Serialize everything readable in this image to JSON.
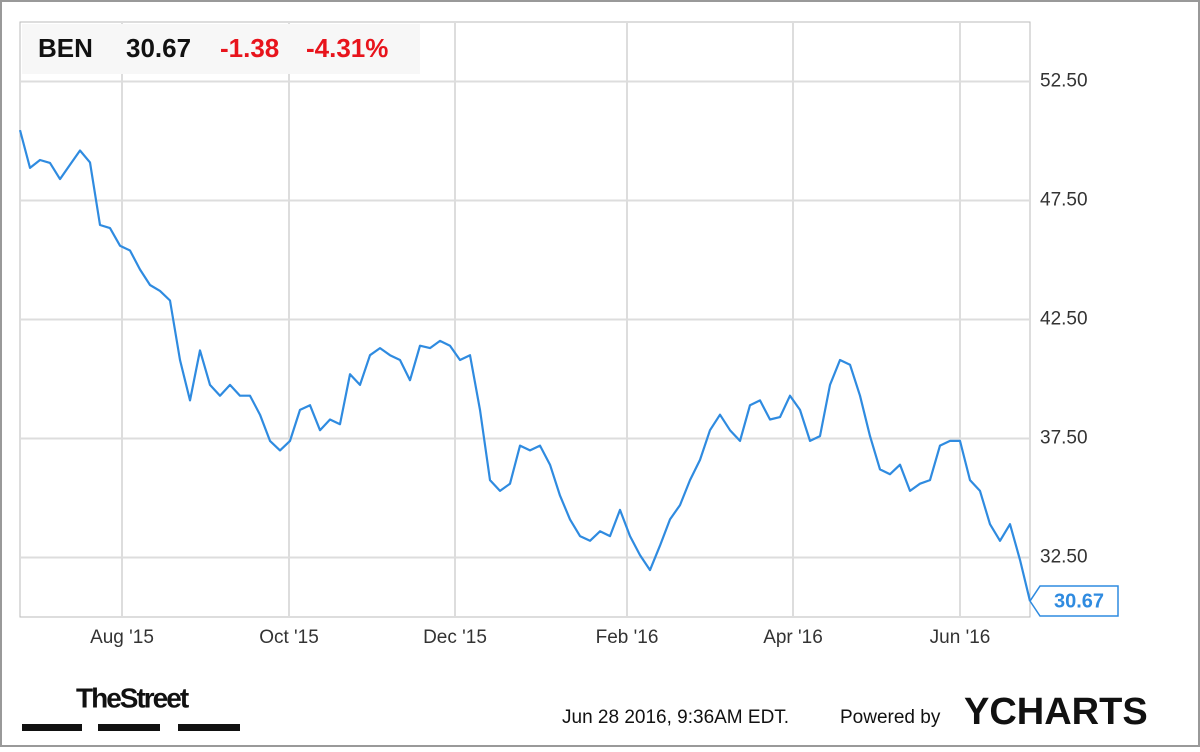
{
  "chart_data": {
    "type": "line",
    "ticker": "BEN",
    "price": "30.67",
    "change": "-1.38",
    "change_pct": "-4.31%",
    "color": "#2f8be0",
    "grid": true,
    "values": [
      50.46,
      48.87,
      49.2,
      49.08,
      48.4,
      49.0,
      49.6,
      49.1,
      46.47,
      46.34,
      45.6,
      45.4,
      44.6,
      43.95,
      43.7,
      43.3,
      40.8,
      39.1,
      41.2,
      39.75,
      39.3,
      39.75,
      39.3,
      39.3,
      38.5,
      37.4,
      37.0,
      37.4,
      38.7,
      38.9,
      37.85,
      38.3,
      38.1,
      40.2,
      39.75,
      41.0,
      41.3,
      41.0,
      40.8,
      39.95,
      41.4,
      41.3,
      41.6,
      41.4,
      40.8,
      41.0,
      38.7,
      35.75,
      35.3,
      35.6,
      37.2,
      37.0,
      37.2,
      36.4,
      35.1,
      34.1,
      33.4,
      33.2,
      33.6,
      33.4,
      34.5,
      33.4,
      32.6,
      31.97,
      33.0,
      34.1,
      34.7,
      35.75,
      36.6,
      37.85,
      38.5,
      37.85,
      37.4,
      38.9,
      39.1,
      38.3,
      38.4,
      39.3,
      38.7,
      37.4,
      37.6,
      39.75,
      40.8,
      40.6,
      39.3,
      37.6,
      36.2,
      36.0,
      36.4,
      35.3,
      35.6,
      35.75,
      37.2,
      37.4,
      37.4,
      35.75,
      35.3,
      33.9,
      33.2,
      33.9,
      32.4,
      30.67
    ],
    "xlim": [
      0,
      101
    ],
    "xticks": [
      {
        "value": 10.2,
        "label": "Aug '15"
      },
      {
        "value": 26.9,
        "label": "Oct '15"
      },
      {
        "value": 43.5,
        "label": "Dec '15"
      },
      {
        "value": 60.7,
        "label": "Feb '16"
      },
      {
        "value": 77.3,
        "label": "Apr '16"
      },
      {
        "value": 94.0,
        "label": "Jun '16"
      }
    ],
    "ylim": [
      30,
      55
    ],
    "yticks": [
      {
        "value": 32.5,
        "label": "32.50"
      },
      {
        "value": 37.5,
        "label": "37.50"
      },
      {
        "value": 42.5,
        "label": "42.50"
      },
      {
        "value": 47.5,
        "label": "47.50"
      },
      {
        "value": 52.5,
        "label": "52.50"
      }
    ],
    "source": "TheStreet",
    "timestamp": "Jun 28 2016, 9:36AM EDT.",
    "powered_by": "Powered by",
    "brand": "YCHARTS"
  }
}
